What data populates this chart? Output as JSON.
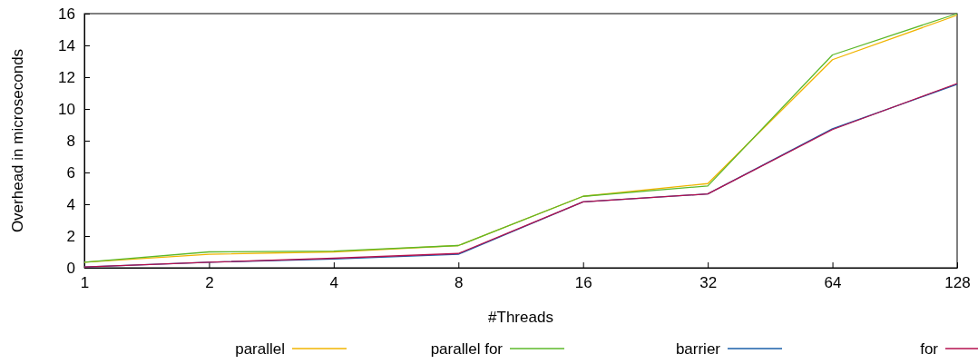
{
  "chart_data": {
    "type": "line",
    "xlabel": "#Threads",
    "ylabel": "Overhead in microseconds",
    "categories": [
      "1",
      "2",
      "4",
      "8",
      "16",
      "32",
      "64",
      "128"
    ],
    "ylim": [
      0,
      16
    ],
    "yticks": [
      0,
      2,
      4,
      6,
      8,
      10,
      12,
      14,
      16
    ],
    "grid": false,
    "legend": "bottom",
    "marker": "none",
    "line_style": "solid",
    "series": [
      {
        "name": "parallel",
        "color": "#f0b400",
        "values": [
          0.35,
          0.85,
          1.0,
          1.4,
          4.5,
          5.3,
          13.1,
          15.9
        ]
      },
      {
        "name": "parallel for",
        "color": "#5cb82a",
        "values": [
          0.35,
          1.0,
          1.05,
          1.4,
          4.5,
          5.15,
          13.4,
          16.0
        ]
      },
      {
        "name": "barrier",
        "color": "#1a5fa8",
        "values": [
          0.05,
          0.35,
          0.55,
          0.85,
          4.15,
          4.65,
          8.75,
          11.55
        ]
      },
      {
        "name": "for",
        "color": "#b5104e",
        "values": [
          0.05,
          0.35,
          0.6,
          0.9,
          4.15,
          4.65,
          8.7,
          11.6
        ]
      }
    ]
  }
}
